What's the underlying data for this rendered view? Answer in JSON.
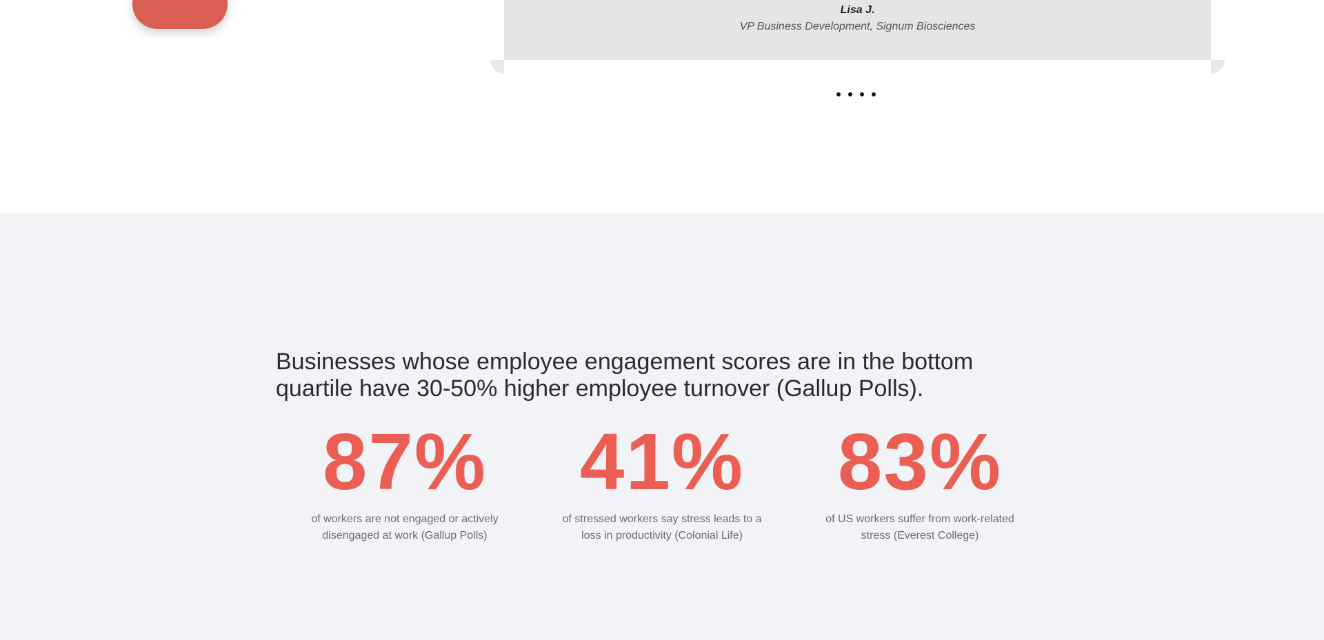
{
  "testimonial": {
    "author_name": "Lisa J.",
    "author_role": "VP Business Development, Signum Biosciences"
  },
  "carousel": {
    "dots": [
      "",
      "",
      "",
      ""
    ]
  },
  "stats_section": {
    "heading": "Businesses whose employee engagement scores are in the bottom quartile have 30-50% higher employee turnover (Gallup Polls).",
    "stats": [
      {
        "value": "87%",
        "description": "of workers are not engaged or actively disengaged at work (Gallup Polls)"
      },
      {
        "value": "41%",
        "description": "of stressed workers say stress leads to a loss in productivity (Colonial Life)"
      },
      {
        "value": "83%",
        "description": "of US workers suffer from work-related stress (Everest College)"
      }
    ]
  },
  "colors": {
    "accent": "#eb5e53",
    "button": "#d95f53",
    "section_bg": "#f2f3f6",
    "card_bg": "#e5e5e5",
    "heading_text": "#2a2b3a"
  }
}
